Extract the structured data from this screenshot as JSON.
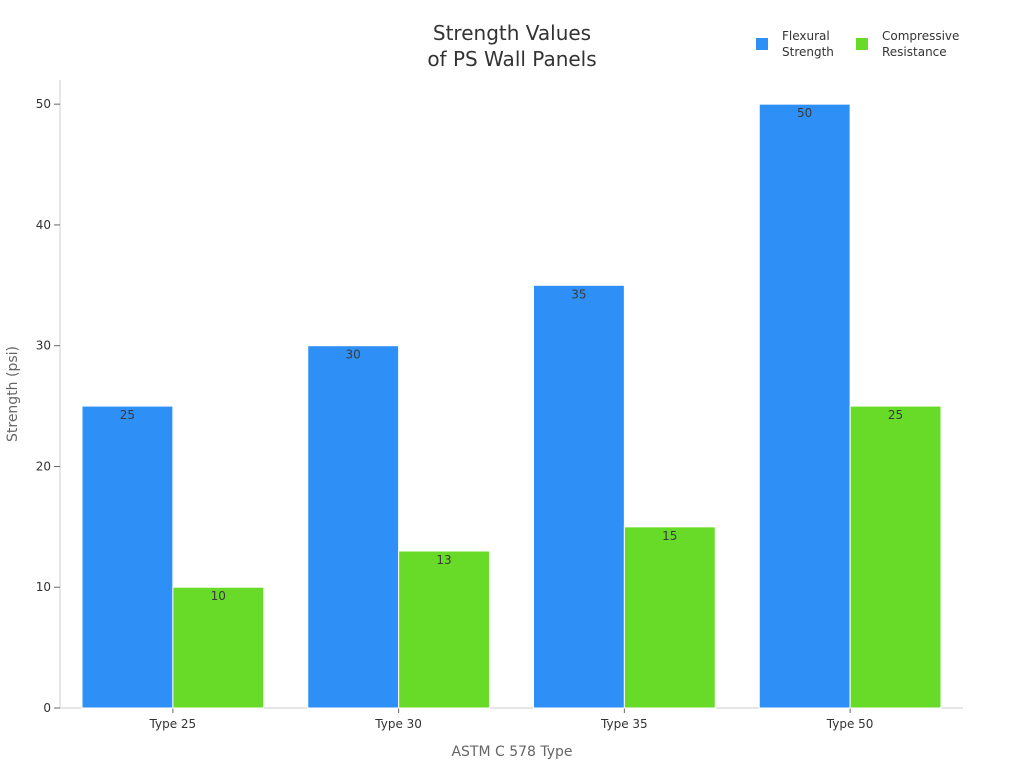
{
  "chart_data": {
    "type": "bar",
    "title_lines": [
      "Strength Values",
      "of PS Wall Panels"
    ],
    "xlabel": "ASTM C 578 Type",
    "ylabel": "Strength (psi)",
    "categories": [
      "Type 25",
      "Type 30",
      "Type 35",
      "Type 50"
    ],
    "series": [
      {
        "name": "Flexural\nStrength",
        "color": "#2E90F7",
        "values": [
          25,
          30,
          35,
          50
        ]
      },
      {
        "name": "Compressive\nResistance",
        "color": "#67DB28",
        "values": [
          10,
          13,
          15,
          25
        ]
      }
    ],
    "ylim": [
      0,
      52
    ],
    "yticks": [
      0,
      10,
      20,
      30,
      40,
      50
    ],
    "grid": false,
    "legend_position": "top-right"
  }
}
